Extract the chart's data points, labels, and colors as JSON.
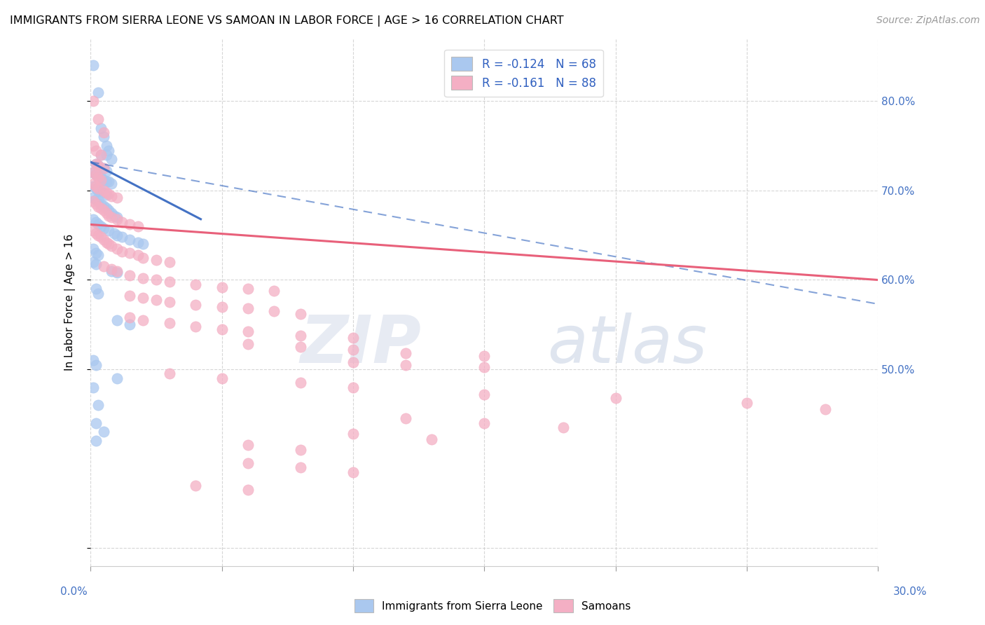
{
  "title": "IMMIGRANTS FROM SIERRA LEONE VS SAMOAN IN LABOR FORCE | AGE > 16 CORRELATION CHART",
  "source": "Source: ZipAtlas.com",
  "ylabel": "In Labor Force | Age > 16",
  "watermark": "ZIPatlas",
  "sierra_leone_color": "#aac8ef",
  "samoan_color": "#f4afc4",
  "sierra_leone_line_color": "#4472c4",
  "samoan_line_color": "#e8607a",
  "legend_color1": "#aac8ef",
  "legend_color2": "#f4afc4",
  "y_tick_vals": [
    0.3,
    0.5,
    0.6,
    0.7,
    0.8
  ],
  "y_tick_labels_right": [
    "",
    "50.0%",
    "60.0%",
    "70.0%",
    "80.0%"
  ],
  "xlim": [
    0.0,
    0.3
  ],
  "ylim": [
    0.28,
    0.87
  ],
  "blue_line_x0": 0.0,
  "blue_line_y0": 0.732,
  "blue_line_x1": 0.042,
  "blue_line_y1": 0.668,
  "dash_line_x0": 0.0,
  "dash_line_y0": 0.732,
  "dash_line_x1": 0.3,
  "dash_line_y1": 0.573,
  "pink_line_x0": 0.0,
  "pink_line_y0": 0.662,
  "pink_line_x1": 0.3,
  "pink_line_y1": 0.6,
  "sierra_leone_pts": [
    [
      0.001,
      0.84
    ],
    [
      0.003,
      0.81
    ],
    [
      0.004,
      0.77
    ],
    [
      0.005,
      0.76
    ],
    [
      0.006,
      0.75
    ],
    [
      0.004,
      0.74
    ],
    [
      0.006,
      0.74
    ],
    [
      0.007,
      0.745
    ],
    [
      0.008,
      0.735
    ],
    [
      0.002,
      0.73
    ],
    [
      0.003,
      0.728
    ],
    [
      0.005,
      0.725
    ],
    [
      0.006,
      0.722
    ],
    [
      0.001,
      0.72
    ],
    [
      0.002,
      0.718
    ],
    [
      0.003,
      0.715
    ],
    [
      0.004,
      0.715
    ],
    [
      0.005,
      0.712
    ],
    [
      0.006,
      0.71
    ],
    [
      0.007,
      0.71
    ],
    [
      0.008,
      0.708
    ],
    [
      0.001,
      0.705
    ],
    [
      0.002,
      0.702
    ],
    [
      0.003,
      0.7
    ],
    [
      0.004,
      0.7
    ],
    [
      0.005,
      0.698
    ],
    [
      0.006,
      0.695
    ],
    [
      0.001,
      0.692
    ],
    [
      0.002,
      0.69
    ],
    [
      0.003,
      0.688
    ],
    [
      0.004,
      0.685
    ],
    [
      0.005,
      0.683
    ],
    [
      0.006,
      0.68
    ],
    [
      0.007,
      0.678
    ],
    [
      0.008,
      0.675
    ],
    [
      0.009,
      0.672
    ],
    [
      0.01,
      0.67
    ],
    [
      0.001,
      0.668
    ],
    [
      0.002,
      0.665
    ],
    [
      0.003,
      0.662
    ],
    [
      0.004,
      0.66
    ],
    [
      0.005,
      0.658
    ],
    [
      0.007,
      0.655
    ],
    [
      0.009,
      0.652
    ],
    [
      0.01,
      0.65
    ],
    [
      0.012,
      0.648
    ],
    [
      0.015,
      0.645
    ],
    [
      0.018,
      0.642
    ],
    [
      0.02,
      0.64
    ],
    [
      0.001,
      0.635
    ],
    [
      0.002,
      0.63
    ],
    [
      0.003,
      0.628
    ],
    [
      0.001,
      0.62
    ],
    [
      0.002,
      0.618
    ],
    [
      0.008,
      0.61
    ],
    [
      0.01,
      0.608
    ],
    [
      0.002,
      0.59
    ],
    [
      0.003,
      0.585
    ],
    [
      0.01,
      0.555
    ],
    [
      0.015,
      0.55
    ],
    [
      0.001,
      0.51
    ],
    [
      0.002,
      0.505
    ],
    [
      0.01,
      0.49
    ],
    [
      0.001,
      0.48
    ],
    [
      0.003,
      0.46
    ],
    [
      0.002,
      0.44
    ],
    [
      0.005,
      0.43
    ],
    [
      0.002,
      0.42
    ]
  ],
  "samoan_pts": [
    [
      0.001,
      0.8
    ],
    [
      0.003,
      0.78
    ],
    [
      0.005,
      0.765
    ],
    [
      0.001,
      0.75
    ],
    [
      0.002,
      0.745
    ],
    [
      0.004,
      0.74
    ],
    [
      0.002,
      0.73
    ],
    [
      0.003,
      0.728
    ],
    [
      0.005,
      0.725
    ],
    [
      0.001,
      0.72
    ],
    [
      0.002,
      0.718
    ],
    [
      0.003,
      0.715
    ],
    [
      0.004,
      0.712
    ],
    [
      0.001,
      0.708
    ],
    [
      0.002,
      0.705
    ],
    [
      0.003,
      0.702
    ],
    [
      0.005,
      0.7
    ],
    [
      0.006,
      0.698
    ],
    [
      0.007,
      0.696
    ],
    [
      0.008,
      0.694
    ],
    [
      0.01,
      0.692
    ],
    [
      0.001,
      0.688
    ],
    [
      0.002,
      0.685
    ],
    [
      0.003,
      0.682
    ],
    [
      0.004,
      0.68
    ],
    [
      0.005,
      0.678
    ],
    [
      0.006,
      0.675
    ],
    [
      0.007,
      0.672
    ],
    [
      0.008,
      0.67
    ],
    [
      0.01,
      0.668
    ],
    [
      0.012,
      0.665
    ],
    [
      0.015,
      0.662
    ],
    [
      0.018,
      0.66
    ],
    [
      0.001,
      0.655
    ],
    [
      0.002,
      0.652
    ],
    [
      0.003,
      0.65
    ],
    [
      0.004,
      0.648
    ],
    [
      0.005,
      0.645
    ],
    [
      0.006,
      0.642
    ],
    [
      0.007,
      0.64
    ],
    [
      0.008,
      0.638
    ],
    [
      0.01,
      0.635
    ],
    [
      0.012,
      0.632
    ],
    [
      0.015,
      0.63
    ],
    [
      0.018,
      0.628
    ],
    [
      0.02,
      0.625
    ],
    [
      0.025,
      0.622
    ],
    [
      0.03,
      0.62
    ],
    [
      0.005,
      0.615
    ],
    [
      0.008,
      0.612
    ],
    [
      0.01,
      0.61
    ],
    [
      0.015,
      0.605
    ],
    [
      0.02,
      0.602
    ],
    [
      0.025,
      0.6
    ],
    [
      0.03,
      0.598
    ],
    [
      0.04,
      0.595
    ],
    [
      0.05,
      0.592
    ],
    [
      0.06,
      0.59
    ],
    [
      0.07,
      0.588
    ],
    [
      0.015,
      0.582
    ],
    [
      0.02,
      0.58
    ],
    [
      0.025,
      0.578
    ],
    [
      0.03,
      0.575
    ],
    [
      0.04,
      0.572
    ],
    [
      0.05,
      0.57
    ],
    [
      0.06,
      0.568
    ],
    [
      0.07,
      0.565
    ],
    [
      0.08,
      0.562
    ],
    [
      0.015,
      0.558
    ],
    [
      0.02,
      0.555
    ],
    [
      0.03,
      0.552
    ],
    [
      0.04,
      0.548
    ],
    [
      0.05,
      0.545
    ],
    [
      0.06,
      0.542
    ],
    [
      0.08,
      0.538
    ],
    [
      0.1,
      0.535
    ],
    [
      0.06,
      0.528
    ],
    [
      0.08,
      0.525
    ],
    [
      0.1,
      0.522
    ],
    [
      0.12,
      0.518
    ],
    [
      0.15,
      0.515
    ],
    [
      0.1,
      0.508
    ],
    [
      0.12,
      0.505
    ],
    [
      0.15,
      0.502
    ],
    [
      0.03,
      0.495
    ],
    [
      0.05,
      0.49
    ],
    [
      0.08,
      0.485
    ],
    [
      0.1,
      0.48
    ],
    [
      0.15,
      0.472
    ],
    [
      0.2,
      0.468
    ],
    [
      0.25,
      0.462
    ],
    [
      0.28,
      0.455
    ],
    [
      0.12,
      0.445
    ],
    [
      0.15,
      0.44
    ],
    [
      0.18,
      0.435
    ],
    [
      0.1,
      0.428
    ],
    [
      0.13,
      0.422
    ],
    [
      0.06,
      0.415
    ],
    [
      0.08,
      0.41
    ],
    [
      0.06,
      0.395
    ],
    [
      0.08,
      0.39
    ],
    [
      0.1,
      0.385
    ],
    [
      0.04,
      0.37
    ],
    [
      0.06,
      0.365
    ]
  ]
}
